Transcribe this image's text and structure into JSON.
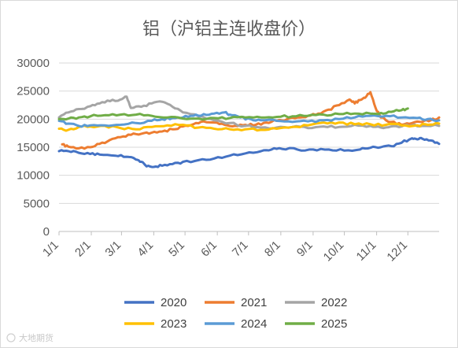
{
  "chart_data": {
    "type": "line",
    "title": "铝（沪铝主连收盘价）",
    "xlabel": "",
    "ylabel": "",
    "ylim": [
      0,
      30000
    ],
    "yticks": [
      "0",
      "5000",
      "10000",
      "15000",
      "20000",
      "25000",
      "30000"
    ],
    "xticks": [
      "1/1",
      "2/1",
      "3/1",
      "4/1",
      "5/1",
      "6/1",
      "7/1",
      "8/1",
      "9/1",
      "10/1",
      "11/1",
      "12/1"
    ],
    "grid": "horizontal",
    "legend_position": "bottom",
    "series": [
      {
        "name": "2020",
        "color": "#4472C4",
        "x": [
          1,
          10,
          20,
          31,
          40,
          55,
          66,
          75,
          80,
          85,
          92,
          100,
          110,
          120,
          135,
          150,
          165,
          180,
          195,
          205,
          215,
          230,
          245,
          260,
          275,
          290,
          300,
          310,
          320,
          330,
          340,
          345,
          350,
          358,
          366
        ],
        "y": [
          14300,
          14300,
          14000,
          13800,
          13700,
          13500,
          13300,
          12800,
          12400,
          11600,
          11500,
          11700,
          12000,
          12400,
          12700,
          13000,
          13500,
          13900,
          14300,
          14600,
          14700,
          14600,
          14600,
          14600,
          14400,
          14600,
          14900,
          15000,
          15200,
          15800,
          16600,
          16400,
          16500,
          16200,
          15600
        ]
      },
      {
        "name": "2021",
        "color": "#ED7D31",
        "x": [
          4,
          10,
          20,
          31,
          40,
          50,
          60,
          70,
          80,
          90,
          100,
          110,
          120,
          130,
          140,
          150,
          160,
          170,
          180,
          190,
          200,
          210,
          220,
          230,
          240,
          250,
          260,
          270,
          280,
          285,
          290,
          295,
          300,
          305,
          310,
          320,
          330,
          340,
          350,
          358,
          366
        ],
        "y": [
          15500,
          15100,
          14800,
          15000,
          15600,
          16300,
          16800,
          17200,
          17400,
          17600,
          17800,
          18200,
          18700,
          19100,
          19600,
          19400,
          19000,
          18800,
          19000,
          19000,
          19400,
          19700,
          20000,
          20300,
          20600,
          21000,
          21700,
          22500,
          23500,
          22800,
          23400,
          23800,
          24800,
          22000,
          20300,
          19500,
          19000,
          19300,
          19500,
          19800,
          20300
        ]
      },
      {
        "name": "2022",
        "color": "#A5A5A5",
        "x": [
          1,
          10,
          20,
          31,
          40,
          50,
          60,
          66,
          70,
          80,
          90,
          100,
          110,
          120,
          135,
          150,
          165,
          180,
          195,
          210,
          225,
          240,
          255,
          270,
          285,
          300,
          310,
          320,
          330,
          340,
          350,
          366
        ],
        "y": [
          20300,
          21200,
          21800,
          22300,
          22800,
          23200,
          23500,
          24000,
          22000,
          22200,
          22800,
          23100,
          22200,
          21200,
          20500,
          19800,
          19300,
          18800,
          18500,
          18500,
          18600,
          18400,
          18700,
          18600,
          19000,
          18800,
          18500,
          18700,
          18700,
          18900,
          18800,
          18800
        ]
      },
      {
        "name": "2023",
        "color": "#FFC000",
        "x": [
          1,
          10,
          20,
          31,
          45,
          60,
          75,
          90,
          105,
          120,
          135,
          150,
          165,
          180,
          195,
          210,
          225,
          240,
          255,
          270,
          285,
          300,
          315,
          330,
          345,
          355,
          366
        ],
        "y": [
          18300,
          18100,
          18600,
          18700,
          18800,
          18400,
          18200,
          18600,
          18900,
          19000,
          18500,
          18300,
          18200,
          18200,
          18100,
          18300,
          18600,
          18900,
          19400,
          19400,
          19100,
          19100,
          19000,
          18900,
          18900,
          19000,
          19200
        ]
      },
      {
        "name": "2024",
        "color": "#5B9BD5",
        "x": [
          1,
          10,
          20,
          31,
          45,
          60,
          75,
          90,
          100,
          110,
          120,
          130,
          140,
          150,
          160,
          165,
          175,
          185,
          195,
          210,
          225,
          240,
          255,
          270,
          285,
          300,
          315,
          330,
          345,
          355,
          366
        ],
        "y": [
          19700,
          19200,
          18800,
          18900,
          18900,
          19000,
          19300,
          19700,
          20000,
          20200,
          20300,
          20600,
          20900,
          21000,
          21200,
          20800,
          20300,
          20000,
          19800,
          19700,
          19500,
          19600,
          19800,
          20000,
          20300,
          20600,
          20600,
          20300,
          20200,
          20000,
          19800
        ]
      },
      {
        "name": "2025",
        "color": "#70AD47",
        "x": [
          1,
          10,
          20,
          31,
          45,
          60,
          75,
          90,
          105,
          120,
          135,
          150,
          165,
          180,
          195,
          210,
          225,
          240,
          255,
          270,
          285,
          300,
          310,
          320,
          330,
          336
        ],
        "y": [
          20000,
          20100,
          20300,
          20500,
          20700,
          20800,
          20800,
          20600,
          20300,
          20100,
          20100,
          20200,
          20200,
          20300,
          20300,
          20400,
          20500,
          20600,
          20800,
          20900,
          21000,
          21000,
          21100,
          21300,
          21600,
          21900
        ]
      }
    ]
  },
  "watermark": "大地期货"
}
